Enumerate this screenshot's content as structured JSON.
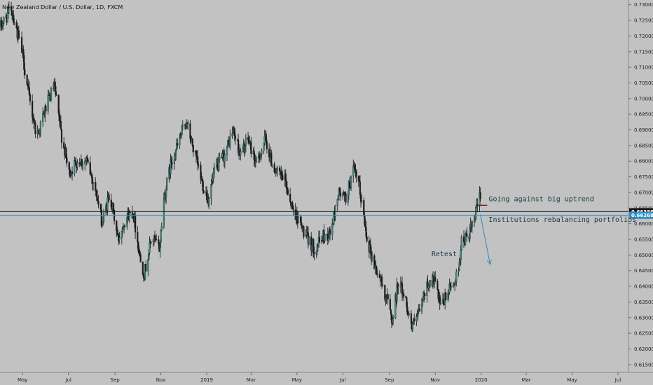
{
  "chart_data": {
    "type": "candlestick",
    "title": "New Zealand Dollar / U.S. Dollar, 1D, FXCM",
    "ylim": [
      0.6125,
      0.7315
    ],
    "y_ticks": [
      0.73,
      0.725,
      0.72,
      0.715,
      0.71,
      0.705,
      0.7,
      0.695,
      0.69,
      0.685,
      0.68,
      0.675,
      0.67,
      0.665,
      0.66,
      0.655,
      0.65,
      0.645,
      0.64,
      0.635,
      0.63,
      0.625,
      0.62,
      0.615
    ],
    "y_tick_labels": [
      "0.73000",
      "0.72500",
      "0.72000",
      "0.71500",
      "0.71000",
      "0.70500",
      "0.70000",
      "0.69500",
      "0.69000",
      "0.68500",
      "0.68000",
      "0.67500",
      "0.67000",
      "0.66500",
      "0.66000",
      "0.65500",
      "0.65000",
      "0.64500",
      "0.64000",
      "0.63500",
      "0.63000",
      "0.62500",
      "0.62000",
      "0.61500"
    ],
    "x_ticks": [
      "2018-05-01",
      "2018-07-01",
      "2018-09-01",
      "2018-11-01",
      "2019-01-01",
      "2019-03-01",
      "2019-05-01",
      "2019-07-01",
      "2019-09-01",
      "2019-11-01",
      "2020-01-01",
      "2020-03-01",
      "2020-05-01",
      "2020-07-01"
    ],
    "x_tick_labels": [
      "May",
      "Jul",
      "Sep",
      "Nov",
      "2019",
      "Mar",
      "May",
      "Jul",
      "Sep",
      "Nov",
      "2020",
      "Mar",
      "May",
      "Jul"
    ],
    "xlim": [
      "2018-04-01",
      "2020-07-15"
    ],
    "series_anchors": [
      {
        "date": "2018-04-02",
        "close": 0.723
      },
      {
        "date": "2018-04-16",
        "close": 0.729
      },
      {
        "date": "2018-05-01",
        "close": 0.714
      },
      {
        "date": "2018-05-10",
        "close": 0.7
      },
      {
        "date": "2018-05-20",
        "close": 0.688
      },
      {
        "date": "2018-06-01",
        "close": 0.697
      },
      {
        "date": "2018-06-12",
        "close": 0.704
      },
      {
        "date": "2018-06-22",
        "close": 0.688
      },
      {
        "date": "2018-07-02",
        "close": 0.676
      },
      {
        "date": "2018-07-12",
        "close": 0.68
      },
      {
        "date": "2018-07-25",
        "close": 0.68
      },
      {
        "date": "2018-08-05",
        "close": 0.672
      },
      {
        "date": "2018-08-15",
        "close": 0.66
      },
      {
        "date": "2018-08-25",
        "close": 0.67
      },
      {
        "date": "2018-09-05",
        "close": 0.655
      },
      {
        "date": "2018-09-15",
        "close": 0.662
      },
      {
        "date": "2018-09-25",
        "close": 0.664
      },
      {
        "date": "2018-10-05",
        "close": 0.648
      },
      {
        "date": "2018-10-10",
        "close": 0.644
      },
      {
        "date": "2018-10-20",
        "close": 0.656
      },
      {
        "date": "2018-10-30",
        "close": 0.652
      },
      {
        "date": "2018-11-05",
        "close": 0.668
      },
      {
        "date": "2018-11-15",
        "close": 0.68
      },
      {
        "date": "2018-11-25",
        "close": 0.686
      },
      {
        "date": "2018-12-04",
        "close": 0.693
      },
      {
        "date": "2018-12-12",
        "close": 0.686
      },
      {
        "date": "2018-12-26",
        "close": 0.673
      },
      {
        "date": "2019-01-03",
        "close": 0.668
      },
      {
        "date": "2019-01-12",
        "close": 0.677
      },
      {
        "date": "2019-01-25",
        "close": 0.682
      },
      {
        "date": "2019-02-05",
        "close": 0.69
      },
      {
        "date": "2019-02-15",
        "close": 0.682
      },
      {
        "date": "2019-02-25",
        "close": 0.687
      },
      {
        "date": "2019-03-08",
        "close": 0.679
      },
      {
        "date": "2019-03-20",
        "close": 0.687
      },
      {
        "date": "2019-03-28",
        "close": 0.68
      },
      {
        "date": "2019-04-05",
        "close": 0.676
      },
      {
        "date": "2019-04-15",
        "close": 0.674
      },
      {
        "date": "2019-04-25",
        "close": 0.665
      },
      {
        "date": "2019-05-05",
        "close": 0.66
      },
      {
        "date": "2019-05-15",
        "close": 0.655
      },
      {
        "date": "2019-05-25",
        "close": 0.652
      },
      {
        "date": "2019-06-05",
        "close": 0.656
      },
      {
        "date": "2019-06-15",
        "close": 0.657
      },
      {
        "date": "2019-06-25",
        "close": 0.67
      },
      {
        "date": "2019-07-05",
        "close": 0.668
      },
      {
        "date": "2019-07-15",
        "close": 0.677
      },
      {
        "date": "2019-07-22",
        "close": 0.673
      },
      {
        "date": "2019-08-02",
        "close": 0.656
      },
      {
        "date": "2019-08-10",
        "close": 0.648
      },
      {
        "date": "2019-08-20",
        "close": 0.642
      },
      {
        "date": "2019-08-30",
        "close": 0.635
      },
      {
        "date": "2019-09-05",
        "close": 0.629
      },
      {
        "date": "2019-09-13",
        "close": 0.642
      },
      {
        "date": "2019-09-22",
        "close": 0.636
      },
      {
        "date": "2019-10-01",
        "close": 0.627
      },
      {
        "date": "2019-10-10",
        "close": 0.631
      },
      {
        "date": "2019-10-22",
        "close": 0.641
      },
      {
        "date": "2019-10-31",
        "close": 0.642
      },
      {
        "date": "2019-11-08",
        "close": 0.633
      },
      {
        "date": "2019-11-20",
        "close": 0.639
      },
      {
        "date": "2019-11-30",
        "close": 0.643
      },
      {
        "date": "2019-12-06",
        "close": 0.654
      },
      {
        "date": "2019-12-14",
        "close": 0.656
      },
      {
        "date": "2019-12-22",
        "close": 0.66
      },
      {
        "date": "2019-12-31",
        "close": 0.67
      }
    ],
    "price_lines": [
      {
        "value": 0.66386,
        "label": "0.66386",
        "color": "#151515"
      },
      {
        "value": 0.66268,
        "label": "0.66268",
        "color": "#2f8fc4"
      }
    ],
    "annotations": [
      {
        "text": "Going against big uptrend",
        "date": "2020-01-11",
        "y": 0.6672
      },
      {
        "text": "Institutions rebalancing portfolios",
        "date": "2020-01-11",
        "y": 0.6606
      },
      {
        "text": "Retest",
        "date": "2019-10-27",
        "y": 0.6496
      }
    ],
    "arrow": {
      "from": {
        "date": "2019-12-31",
        "y": 0.663
      },
      "to": {
        "date": "2020-01-13",
        "y": 0.647
      },
      "color": "#2e8cc0"
    },
    "marker_segment": {
      "from": {
        "date": "2019-12-26",
        "y": 0.6659
      },
      "to": {
        "date": "2020-01-09",
        "y": 0.6659
      },
      "color": "#7a1c1c"
    }
  }
}
